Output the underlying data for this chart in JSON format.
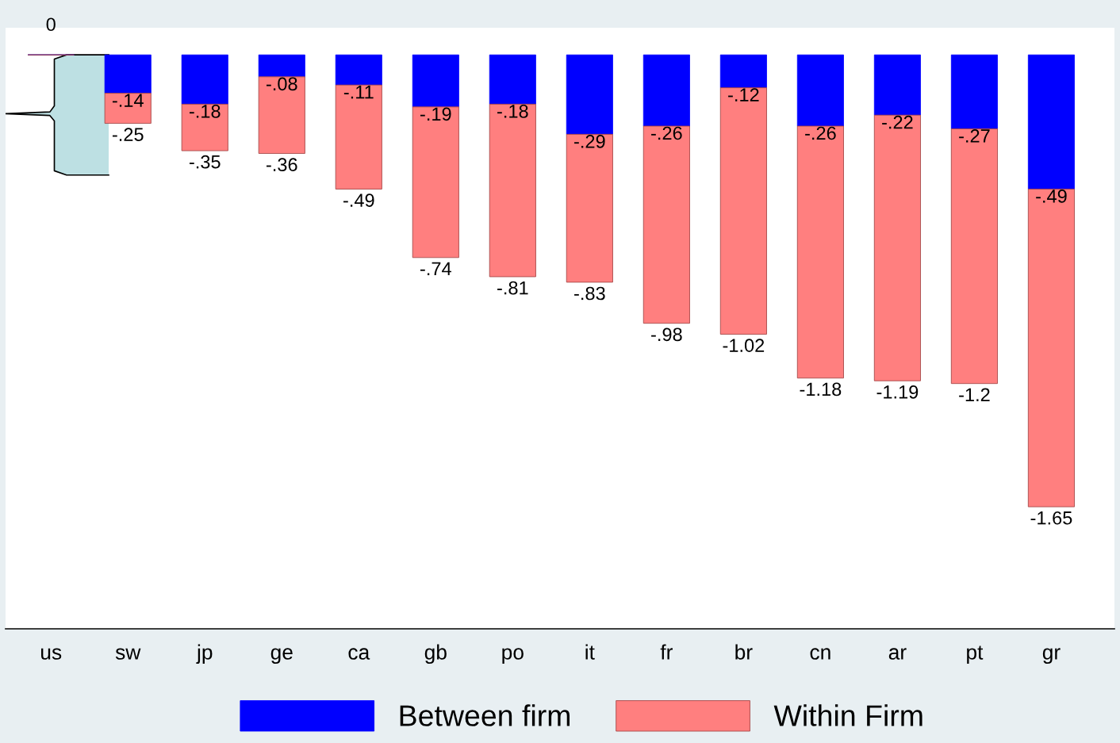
{
  "chart_data": {
    "type": "bar",
    "stacked": true,
    "categories": [
      "us",
      "sw",
      "jp",
      "ge",
      "ca",
      "gb",
      "po",
      "it",
      "fr",
      "br",
      "cn",
      "ar",
      "pt",
      "gr"
    ],
    "series": [
      {
        "name": "Between firm",
        "color": "#0000ff",
        "values": [
          0,
          -0.14,
          -0.18,
          -0.08,
          -0.11,
          -0.19,
          -0.18,
          -0.29,
          -0.26,
          -0.12,
          -0.26,
          -0.22,
          -0.27,
          -0.49
        ],
        "value_labels": [
          "0",
          "-.14",
          "-.18",
          "-.08",
          "-.11",
          "-.19",
          "-.18",
          "-.29",
          "-.26",
          "-.12",
          "-.26",
          "-.22",
          "-.27",
          "-.49"
        ]
      },
      {
        "name": "Within Firm",
        "color": "#ff7f7f",
        "values": [
          0,
          -0.11,
          -0.17,
          -0.28,
          -0.38,
          -0.55,
          -0.63,
          -0.54,
          -0.72,
          -0.9,
          -0.92,
          -0.97,
          -0.93,
          -1.16
        ]
      }
    ],
    "totals": [
      null,
      "-.25",
      "-.35",
      "-.36",
      "-.49",
      "-.74",
      "-.81",
      "-.83",
      "-.98",
      "-1.02",
      "-1.18",
      "-1.19",
      "-1.2",
      "-1.65"
    ],
    "legend": "bottom",
    "tick_labels": "x"
  }
}
